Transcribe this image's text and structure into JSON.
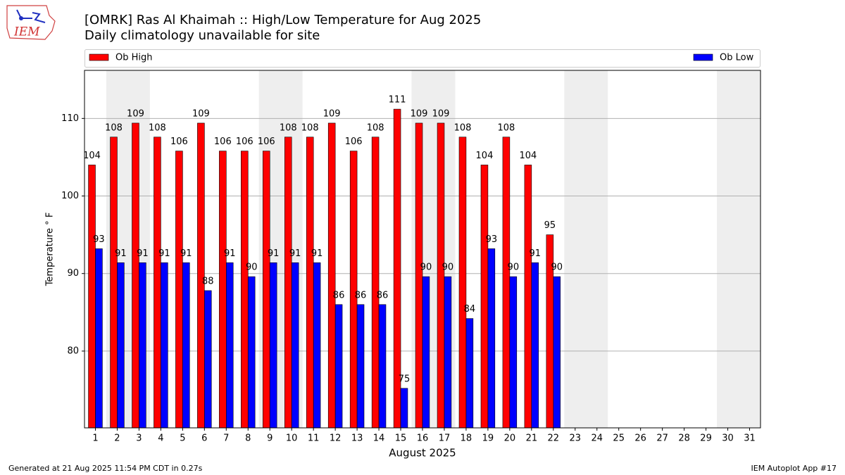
{
  "chart_data": {
    "type": "bar",
    "title": "[OMRK] Ras Al Khaimah :: High/Low Temperature for Aug 2025",
    "subtitle": "Daily climatology unavailable for site",
    "x_label": "August 2025",
    "y_label": "Temperature ° F",
    "logo_text": "IEM",
    "footer_left": "Generated at 21 Aug 2025 11:54 PM CDT in 0.27s",
    "footer_right": "IEM Autoplot App #17",
    "categories": [
      "1",
      "2",
      "3",
      "4",
      "5",
      "6",
      "7",
      "8",
      "9",
      "10",
      "11",
      "12",
      "13",
      "14",
      "15",
      "16",
      "17",
      "18",
      "19",
      "20",
      "21",
      "22",
      "23",
      "24",
      "25",
      "26",
      "27",
      "28",
      "29",
      "30",
      "31"
    ],
    "series": [
      {
        "name": "Ob High",
        "color": "#ff0000",
        "values": [
          104,
          107.6,
          109.4,
          107.6,
          105.8,
          109.4,
          105.8,
          105.8,
          105.8,
          107.6,
          107.6,
          109.4,
          105.8,
          107.6,
          111.2,
          109.4,
          109.4,
          107.6,
          104,
          107.6,
          104,
          95,
          null,
          null,
          null,
          null,
          null,
          null,
          null,
          null,
          null
        ],
        "value_labels": [
          "104",
          "108",
          "109",
          "108",
          "106",
          "109",
          "106",
          "106",
          "106",
          "108",
          "108",
          "109",
          "106",
          "108",
          "111",
          "109",
          "109",
          "108",
          "104",
          "108",
          "104",
          "95",
          null,
          null,
          null,
          null,
          null,
          null,
          null,
          null,
          null
        ]
      },
      {
        "name": "Ob Low",
        "color": "#0000ff",
        "values": [
          93.2,
          91.4,
          91.4,
          91.4,
          91.4,
          87.8,
          91.4,
          89.6,
          91.4,
          91.4,
          91.4,
          86,
          86,
          86,
          75.2,
          89.6,
          89.6,
          84.2,
          93.2,
          89.6,
          91.4,
          89.6,
          null,
          null,
          null,
          null,
          null,
          null,
          null,
          null,
          null
        ],
        "value_labels": [
          "93",
          "91",
          "91",
          "91",
          "91",
          "88",
          "91",
          "90",
          "91",
          "91",
          "91",
          "86",
          "86",
          "86",
          "75",
          "90",
          "90",
          "84",
          "93",
          "90",
          "91",
          "90",
          null,
          null,
          null,
          null,
          null,
          null,
          null,
          null,
          null
        ]
      }
    ],
    "ylim": [
      70.1,
      116.2
    ],
    "yticks": [
      80,
      90,
      100,
      110
    ],
    "grid": true,
    "legend": "top"
  }
}
